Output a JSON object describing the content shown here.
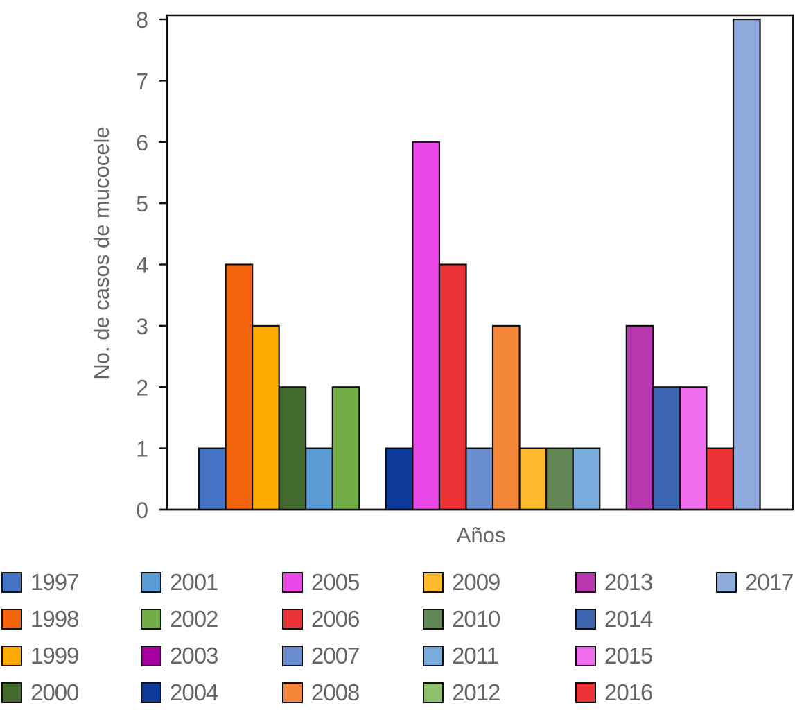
{
  "chart_data": {
    "type": "bar",
    "title": "",
    "xlabel": "Años",
    "ylabel": "No. de casos de mucocele",
    "ylim": [
      0,
      8
    ],
    "yticks": [
      "0",
      "1",
      "2",
      "3",
      "4",
      "5",
      "6",
      "7",
      "8"
    ],
    "grid": false,
    "legend_position": "bottom",
    "categories": [
      "1997",
      "1998",
      "1999",
      "2000",
      "2001",
      "2002",
      "2003",
      "2004",
      "2005",
      "2006",
      "2007",
      "2008",
      "2009",
      "2010",
      "2011",
      "2012",
      "2013",
      "2014",
      "2015",
      "2016",
      "2017"
    ],
    "values": [
      1,
      4,
      3,
      2,
      1,
      2,
      0,
      1,
      6,
      4,
      1,
      3,
      1,
      1,
      1,
      0,
      3,
      2,
      2,
      1,
      8
    ],
    "colors": [
      "#4472C4",
      "#F5650E",
      "#FFAA00",
      "#426A2E",
      "#5B9BD5",
      "#70AD47",
      "#A5009F",
      "#0D3A9A",
      "#EB48E8",
      "#EC3237",
      "#6A8ECF",
      "#F5873A",
      "#FFBA30",
      "#648855",
      "#7BACDE",
      "#8DC06A",
      "#B838B0",
      "#3C65B0",
      "#EE6EEE",
      "#EC3237",
      "#8FAADC"
    ]
  },
  "legend": {
    "items": [
      {
        "label": "1997",
        "color": "#4472C4"
      },
      {
        "label": "1998",
        "color": "#F5650E"
      },
      {
        "label": "1999",
        "color": "#FFAA00"
      },
      {
        "label": "2000",
        "color": "#426A2E"
      },
      {
        "label": "2001",
        "color": "#5B9BD5"
      },
      {
        "label": "2002",
        "color": "#70AD47"
      },
      {
        "label": "2003",
        "color": "#A5009F"
      },
      {
        "label": "2004",
        "color": "#0D3A9A"
      },
      {
        "label": "2005",
        "color": "#EB48E8"
      },
      {
        "label": "2006",
        "color": "#EC3237"
      },
      {
        "label": "2007",
        "color": "#6A8ECF"
      },
      {
        "label": "2008",
        "color": "#F5873A"
      },
      {
        "label": "2009",
        "color": "#FFBA30"
      },
      {
        "label": "2010",
        "color": "#648855"
      },
      {
        "label": "2011",
        "color": "#7BACDE"
      },
      {
        "label": "2012",
        "color": "#8DC06A"
      },
      {
        "label": "2013",
        "color": "#B838B0"
      },
      {
        "label": "2014",
        "color": "#3C65B0"
      },
      {
        "label": "2015",
        "color": "#EE6EEE"
      },
      {
        "label": "2016",
        "color": "#EC3237"
      },
      {
        "label": "2017",
        "color": "#8FAADC"
      }
    ]
  }
}
